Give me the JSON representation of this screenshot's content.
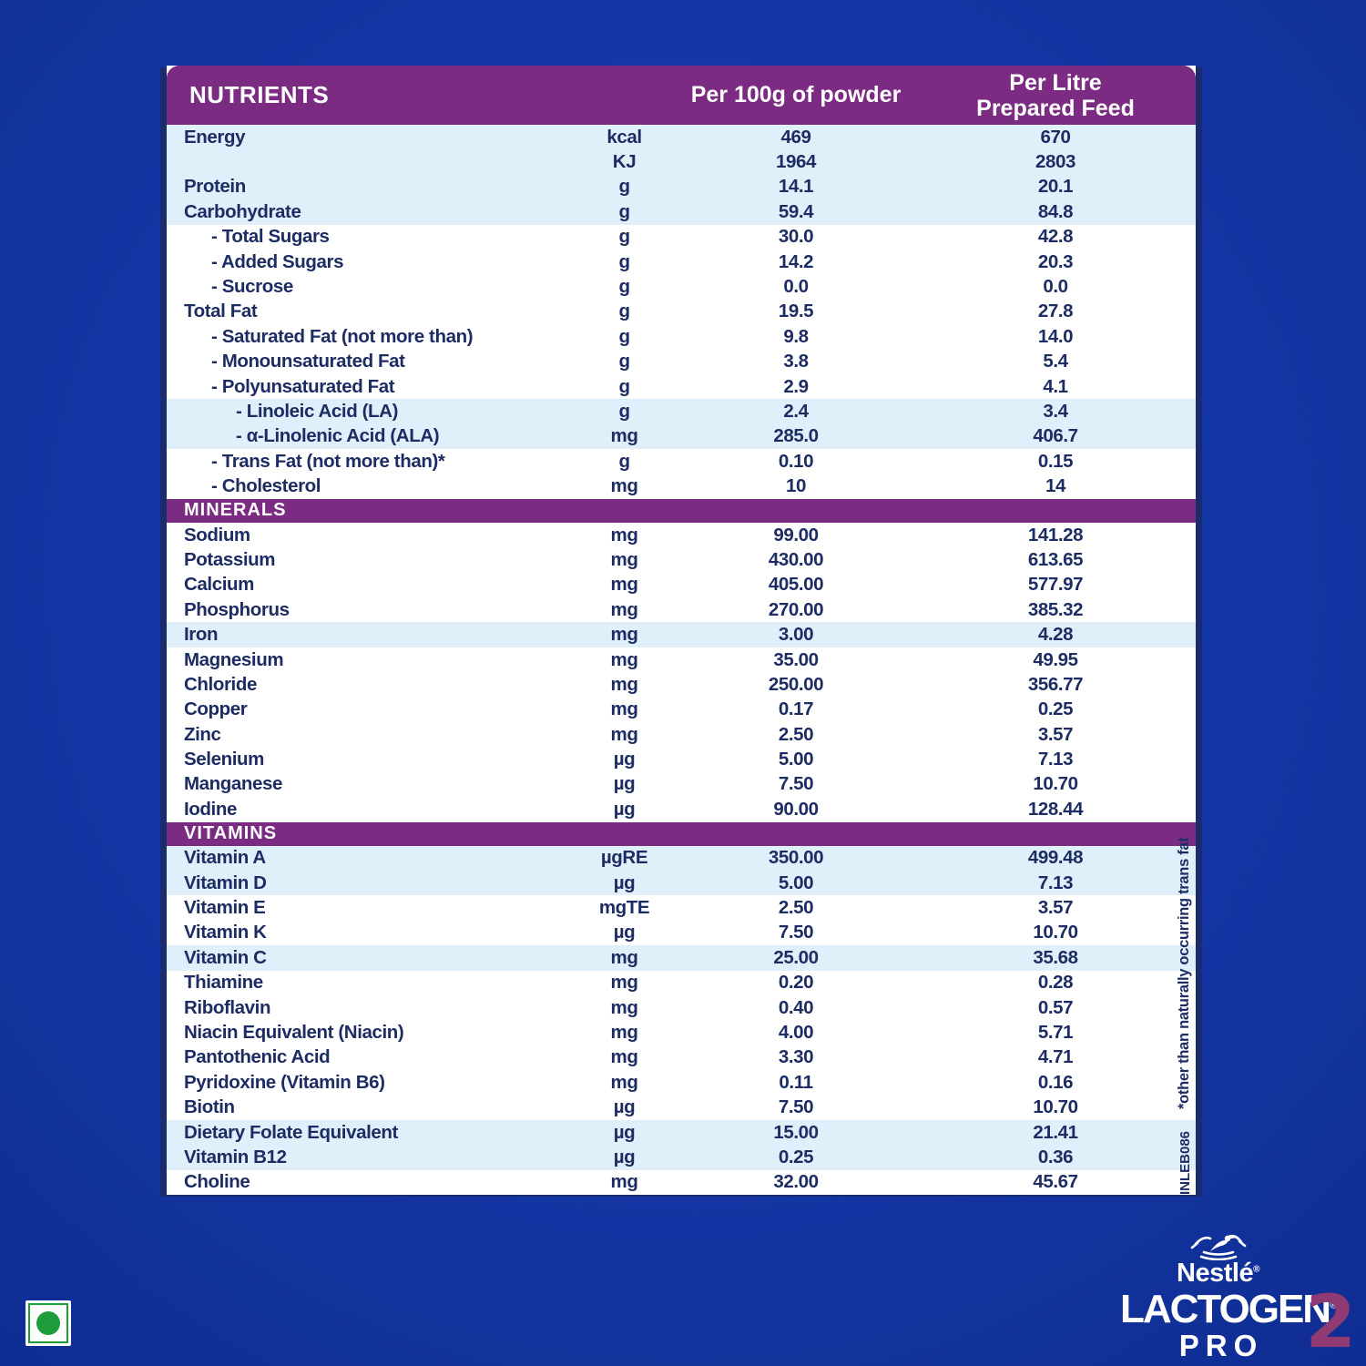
{
  "table": {
    "header": {
      "nutrients": "NUTRIENTS",
      "per_100g": "Per 100g of powder",
      "per_litre_line1": "Per Litre",
      "per_litre_line2": "Prepared Feed"
    },
    "rows": [
      {
        "label": "Energy",
        "unit": "kcal",
        "per_100g": "469",
        "per_litre": "670",
        "indent": 0,
        "shaded": true
      },
      {
        "label": "",
        "unit": "KJ",
        "per_100g": "1964",
        "per_litre": "2803",
        "indent": 0,
        "shaded": true
      },
      {
        "label": "Protein",
        "unit": "g",
        "per_100g": "14.1",
        "per_litre": "20.1",
        "indent": 0,
        "shaded": true
      },
      {
        "label": "Carbohydrate",
        "unit": "g",
        "per_100g": "59.4",
        "per_litre": "84.8",
        "indent": 0,
        "shaded": true
      },
      {
        "label": "- Total Sugars",
        "unit": "g",
        "per_100g": "30.0",
        "per_litre": "42.8",
        "indent": 1,
        "shaded": false
      },
      {
        "label": "- Added Sugars",
        "unit": "g",
        "per_100g": "14.2",
        "per_litre": "20.3",
        "indent": 1,
        "shaded": false
      },
      {
        "label": "- Sucrose",
        "unit": "g",
        "per_100g": "0.0",
        "per_litre": "0.0",
        "indent": 1,
        "shaded": false
      },
      {
        "label": "Total Fat",
        "unit": "g",
        "per_100g": "19.5",
        "per_litre": "27.8",
        "indent": 0,
        "shaded": false
      },
      {
        "label": "- Saturated Fat (not more than)",
        "unit": "g",
        "per_100g": "9.8",
        "per_litre": "14.0",
        "indent": 1,
        "shaded": false
      },
      {
        "label": "- Monounsaturated Fat",
        "unit": "g",
        "per_100g": "3.8",
        "per_litre": "5.4",
        "indent": 1,
        "shaded": false
      },
      {
        "label": "- Polyunsaturated Fat",
        "unit": "g",
        "per_100g": "2.9",
        "per_litre": "4.1",
        "indent": 1,
        "shaded": false
      },
      {
        "label": "- Linoleic Acid (LA)",
        "unit": "g",
        "per_100g": "2.4",
        "per_litre": "3.4",
        "indent": 2,
        "shaded": true
      },
      {
        "label": "- α-Linolenic Acid (ALA)",
        "unit": "mg",
        "per_100g": "285.0",
        "per_litre": "406.7",
        "indent": 2,
        "shaded": true
      },
      {
        "label": "- Trans Fat (not more than)*",
        "unit": "g",
        "per_100g": "0.10",
        "per_litre": "0.15",
        "indent": 1,
        "shaded": false
      },
      {
        "label": "- Cholesterol",
        "unit": "mg",
        "per_100g": "10",
        "per_litre": "14",
        "indent": 1,
        "shaded": false
      },
      {
        "section": "MINERALS"
      },
      {
        "label": "Sodium",
        "unit": "mg",
        "per_100g": "99.00",
        "per_litre": "141.28",
        "indent": 0,
        "shaded": false
      },
      {
        "label": "Potassium",
        "unit": "mg",
        "per_100g": "430.00",
        "per_litre": "613.65",
        "indent": 0,
        "shaded": false
      },
      {
        "label": "Calcium",
        "unit": "mg",
        "per_100g": "405.00",
        "per_litre": "577.97",
        "indent": 0,
        "shaded": false
      },
      {
        "label": "Phosphorus",
        "unit": "mg",
        "per_100g": "270.00",
        "per_litre": "385.32",
        "indent": 0,
        "shaded": false
      },
      {
        "label": "Iron",
        "unit": "mg",
        "per_100g": "3.00",
        "per_litre": "4.28",
        "indent": 0,
        "shaded": true
      },
      {
        "label": "Magnesium",
        "unit": "mg",
        "per_100g": "35.00",
        "per_litre": "49.95",
        "indent": 0,
        "shaded": false
      },
      {
        "label": "Chloride",
        "unit": "mg",
        "per_100g": "250.00",
        "per_litre": "356.77",
        "indent": 0,
        "shaded": false
      },
      {
        "label": "Copper",
        "unit": "mg",
        "per_100g": "0.17",
        "per_litre": "0.25",
        "indent": 0,
        "shaded": false
      },
      {
        "label": "Zinc",
        "unit": "mg",
        "per_100g": "2.50",
        "per_litre": "3.57",
        "indent": 0,
        "shaded": false
      },
      {
        "label": "Selenium",
        "unit": "µg",
        "per_100g": "5.00",
        "per_litre": "7.13",
        "indent": 0,
        "shaded": false
      },
      {
        "label": "Manganese",
        "unit": "µg",
        "per_100g": "7.50",
        "per_litre": "10.70",
        "indent": 0,
        "shaded": false
      },
      {
        "label": "Iodine",
        "unit": "µg",
        "per_100g": "90.00",
        "per_litre": "128.44",
        "indent": 0,
        "shaded": false
      },
      {
        "section": "VITAMINS"
      },
      {
        "label": "Vitamin A",
        "unit": "µgRE",
        "per_100g": "350.00",
        "per_litre": "499.48",
        "indent": 0,
        "shaded": true
      },
      {
        "label": "Vitamin D",
        "unit": "µg",
        "per_100g": "5.00",
        "per_litre": "7.13",
        "indent": 0,
        "shaded": true
      },
      {
        "label": "Vitamin E",
        "unit": "mgTE",
        "per_100g": "2.50",
        "per_litre": "3.57",
        "indent": 0,
        "shaded": false
      },
      {
        "label": "Vitamin K",
        "unit": "µg",
        "per_100g": "7.50",
        "per_litre": "10.70",
        "indent": 0,
        "shaded": false
      },
      {
        "label": "Vitamin C",
        "unit": "mg",
        "per_100g": "25.00",
        "per_litre": "35.68",
        "indent": 0,
        "shaded": true
      },
      {
        "label": "Thiamine",
        "unit": "mg",
        "per_100g": "0.20",
        "per_litre": "0.28",
        "indent": 0,
        "shaded": false
      },
      {
        "label": "Riboflavin",
        "unit": "mg",
        "per_100g": "0.40",
        "per_litre": "0.57",
        "indent": 0,
        "shaded": false
      },
      {
        "label": "Niacin Equivalent (Niacin)",
        "unit": "mg",
        "per_100g": "4.00",
        "per_litre": "5.71",
        "indent": 0,
        "shaded": false
      },
      {
        "label": "Pantothenic Acid",
        "unit": "mg",
        "per_100g": "3.30",
        "per_litre": "4.71",
        "indent": 0,
        "shaded": false
      },
      {
        "label": "Pyridoxine (Vitamin B6)",
        "unit": "mg",
        "per_100g": "0.11",
        "per_litre": "0.16",
        "indent": 0,
        "shaded": false
      },
      {
        "label": "Biotin",
        "unit": "µg",
        "per_100g": "7.50",
        "per_litre": "10.70",
        "indent": 0,
        "shaded": false
      },
      {
        "label": "Dietary Folate Equivalent",
        "unit": "µg",
        "per_100g": "15.00",
        "per_litre": "21.41",
        "indent": 0,
        "shaded": true
      },
      {
        "label": "Vitamin B12",
        "unit": "µg",
        "per_100g": "0.25",
        "per_litre": "0.36",
        "indent": 0,
        "shaded": true
      },
      {
        "label": "Choline",
        "unit": "mg",
        "per_100g": "32.00",
        "per_litre": "45.67",
        "indent": 0,
        "shaded": false
      }
    ]
  },
  "footnote": "*other than naturally occurring trans fat",
  "batch_code": "INLEB086",
  "logo": {
    "brand": "Nestlé",
    "product": "LACTOGEN",
    "stage": "2",
    "variant": "PRO"
  },
  "colors": {
    "background_blue": "#1436A5",
    "header_purple": "#7B2B82",
    "row_highlight_blue": "#DFF0FA",
    "text_navy": "#1D2C63",
    "stage_magenta": "#8F3A72",
    "veg_green": "#1E9B3A"
  }
}
